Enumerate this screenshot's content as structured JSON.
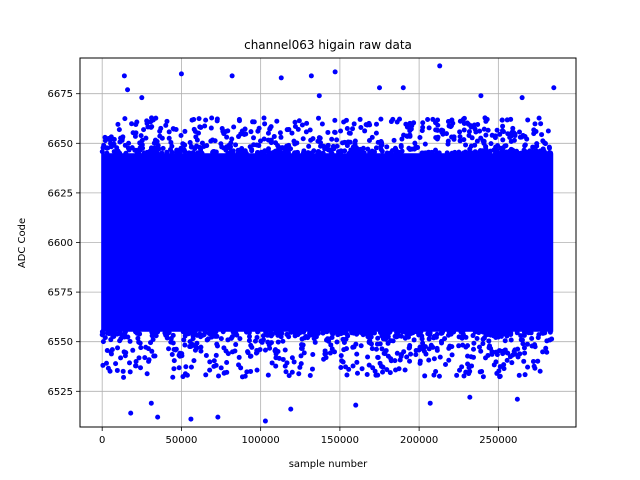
{
  "chart_data": {
    "type": "scatter",
    "title": "channel063 higain raw data",
    "xlabel": "sample number",
    "ylabel": "ADC Code",
    "xlim": [
      -14000,
      299000
    ],
    "ylim": [
      6507,
      6693
    ],
    "xticks": [
      0,
      50000,
      100000,
      150000,
      200000,
      250000
    ],
    "yticks": [
      6525,
      6550,
      6575,
      6600,
      6625,
      6650,
      6675
    ],
    "grid": true,
    "marker_color": "#0000ff",
    "series": [
      {
        "x_range": [
          0,
          284000
        ],
        "dense_band": [
          6540,
          6655
        ],
        "core_band": [
          6555,
          6645
        ],
        "outliers": [
          {
            "x": 14000,
            "y": 6684
          },
          {
            "x": 16000,
            "y": 6677
          },
          {
            "x": 25000,
            "y": 6673
          },
          {
            "x": 50000,
            "y": 6685
          },
          {
            "x": 82000,
            "y": 6684
          },
          {
            "x": 113000,
            "y": 6683
          },
          {
            "x": 132000,
            "y": 6684
          },
          {
            "x": 147000,
            "y": 6686
          },
          {
            "x": 137000,
            "y": 6674
          },
          {
            "x": 175000,
            "y": 6678
          },
          {
            "x": 190000,
            "y": 6678
          },
          {
            "x": 213000,
            "y": 6689
          },
          {
            "x": 239000,
            "y": 6674
          },
          {
            "x": 265000,
            "y": 6673
          },
          {
            "x": 285000,
            "y": 6678
          },
          {
            "x": 18000,
            "y": 6514
          },
          {
            "x": 35000,
            "y": 6512
          },
          {
            "x": 56000,
            "y": 6511
          },
          {
            "x": 73000,
            "y": 6512
          },
          {
            "x": 103000,
            "y": 6510
          },
          {
            "x": 119000,
            "y": 6516
          },
          {
            "x": 160000,
            "y": 6518
          },
          {
            "x": 207000,
            "y": 6519
          },
          {
            "x": 31000,
            "y": 6519
          },
          {
            "x": 232000,
            "y": 6522
          },
          {
            "x": 262000,
            "y": 6521
          }
        ]
      }
    ]
  }
}
